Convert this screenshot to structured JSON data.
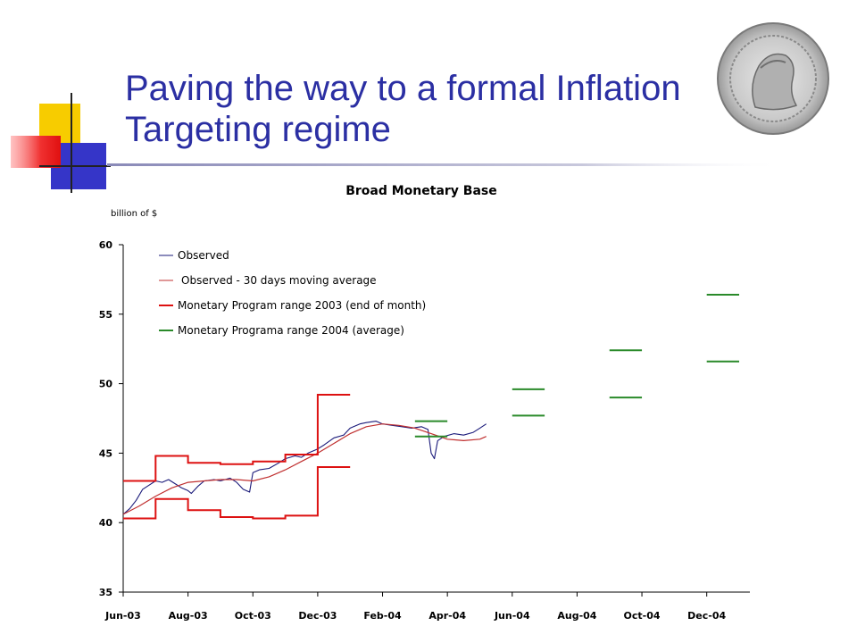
{
  "slide": {
    "title_line1": "Paving the way to a formal Inflation",
    "title_line2": "Targeting regime",
    "title_color": "#2b2fa3"
  },
  "chart_data": {
    "type": "line",
    "title": "Broad Monetary Base",
    "ylabel": "billion of $",
    "ylim": [
      35,
      60
    ],
    "yticks": [
      35,
      40,
      45,
      50,
      55,
      60
    ],
    "xlim": [
      0,
      19
    ],
    "xtick_labels": [
      "Jun-03",
      "Aug-03",
      "Oct-03",
      "Dec-03",
      "Feb-04",
      "Apr-04",
      "Jun-04",
      "Aug-04",
      "Oct-04",
      "Dec-04"
    ],
    "xtick_positions": [
      0,
      2,
      4,
      6,
      8,
      10,
      12,
      14,
      16,
      18
    ],
    "grid": false,
    "legend_position": "top-left",
    "series": [
      {
        "name": "Observed",
        "color": "#1a1a7a",
        "style": "line",
        "points": [
          [
            0,
            40.6
          ],
          [
            0.2,
            41.0
          ],
          [
            0.4,
            41.6
          ],
          [
            0.6,
            42.4
          ],
          [
            0.8,
            42.7
          ],
          [
            1.0,
            43.0
          ],
          [
            1.2,
            42.9
          ],
          [
            1.4,
            43.1
          ],
          [
            1.6,
            42.8
          ],
          [
            1.8,
            42.5
          ],
          [
            2.0,
            42.3
          ],
          [
            2.1,
            42.1
          ],
          [
            2.3,
            42.6
          ],
          [
            2.5,
            43.0
          ],
          [
            2.8,
            43.1
          ],
          [
            3.0,
            43.0
          ],
          [
            3.3,
            43.2
          ],
          [
            3.5,
            42.9
          ],
          [
            3.7,
            42.4
          ],
          [
            3.9,
            42.2
          ],
          [
            4.0,
            43.6
          ],
          [
            4.2,
            43.8
          ],
          [
            4.5,
            43.9
          ],
          [
            4.8,
            44.3
          ],
          [
            5.0,
            44.6
          ],
          [
            5.3,
            44.8
          ],
          [
            5.5,
            44.7
          ],
          [
            5.7,
            45.0
          ],
          [
            6.0,
            45.3
          ],
          [
            6.2,
            45.6
          ],
          [
            6.5,
            46.1
          ],
          [
            6.8,
            46.3
          ],
          [
            7.0,
            46.8
          ],
          [
            7.3,
            47.1
          ],
          [
            7.5,
            47.2
          ],
          [
            7.8,
            47.3
          ],
          [
            8.0,
            47.1
          ],
          [
            8.3,
            47.0
          ],
          [
            8.6,
            46.9
          ],
          [
            8.9,
            46.8
          ],
          [
            9.2,
            46.9
          ],
          [
            9.4,
            46.7
          ],
          [
            9.5,
            45.0
          ],
          [
            9.6,
            44.6
          ],
          [
            9.7,
            45.9
          ],
          [
            9.9,
            46.2
          ],
          [
            10.2,
            46.4
          ],
          [
            10.5,
            46.3
          ],
          [
            10.8,
            46.5
          ],
          [
            11.0,
            46.8
          ],
          [
            11.2,
            47.1
          ]
        ]
      },
      {
        "name": "Observed - 30 days moving average",
        "color": "#c03030",
        "style": "line",
        "points": [
          [
            0,
            40.6
          ],
          [
            0.5,
            41.2
          ],
          [
            1.0,
            41.9
          ],
          [
            1.5,
            42.5
          ],
          [
            2.0,
            42.9
          ],
          [
            2.5,
            43.0
          ],
          [
            3.0,
            43.1
          ],
          [
            3.5,
            43.1
          ],
          [
            4.0,
            43.0
          ],
          [
            4.5,
            43.3
          ],
          [
            5.0,
            43.8
          ],
          [
            5.5,
            44.4
          ],
          [
            6.0,
            45.0
          ],
          [
            6.5,
            45.7
          ],
          [
            7.0,
            46.4
          ],
          [
            7.5,
            46.9
          ],
          [
            8.0,
            47.1
          ],
          [
            8.5,
            47.0
          ],
          [
            9.0,
            46.8
          ],
          [
            9.5,
            46.4
          ],
          [
            10.0,
            46.0
          ],
          [
            10.5,
            45.9
          ],
          [
            11.0,
            46.0
          ],
          [
            11.2,
            46.2
          ]
        ]
      },
      {
        "name": "Monetary Program range 2003 (end of month)",
        "color": "#dd1111",
        "style": "step",
        "upper": [
          [
            0,
            43.0
          ],
          [
            1,
            43.0
          ],
          [
            1,
            44.8
          ],
          [
            2,
            44.8
          ],
          [
            2,
            44.3
          ],
          [
            3,
            44.3
          ],
          [
            3,
            44.2
          ],
          [
            4,
            44.2
          ],
          [
            4,
            44.4
          ],
          [
            5,
            44.4
          ],
          [
            5,
            44.9
          ],
          [
            6,
            44.9
          ],
          [
            6,
            49.2
          ],
          [
            7,
            49.2
          ]
        ],
        "lower": [
          [
            0,
            40.3
          ],
          [
            1,
            40.3
          ],
          [
            1,
            41.7
          ],
          [
            2,
            41.7
          ],
          [
            2,
            40.9
          ],
          [
            3,
            40.9
          ],
          [
            3,
            40.4
          ],
          [
            4,
            40.4
          ],
          [
            4,
            40.3
          ],
          [
            5,
            40.3
          ],
          [
            5,
            40.5
          ],
          [
            6,
            40.5
          ],
          [
            6,
            44.0
          ],
          [
            7,
            44.0
          ]
        ]
      },
      {
        "name": "Monetary Programa range 2004 (average)",
        "color": "#2a8a2a",
        "style": "segments",
        "segments": [
          {
            "x": [
              9,
              10
            ],
            "upper": 47.3,
            "lower": 46.2
          },
          {
            "x": [
              12,
              13
            ],
            "upper": 49.6,
            "lower": 47.7
          },
          {
            "x": [
              15,
              16
            ],
            "upper": 52.4,
            "lower": 49.0
          },
          {
            "x": [
              18,
              19
            ],
            "upper": 56.4,
            "lower": 51.6
          }
        ]
      }
    ]
  }
}
